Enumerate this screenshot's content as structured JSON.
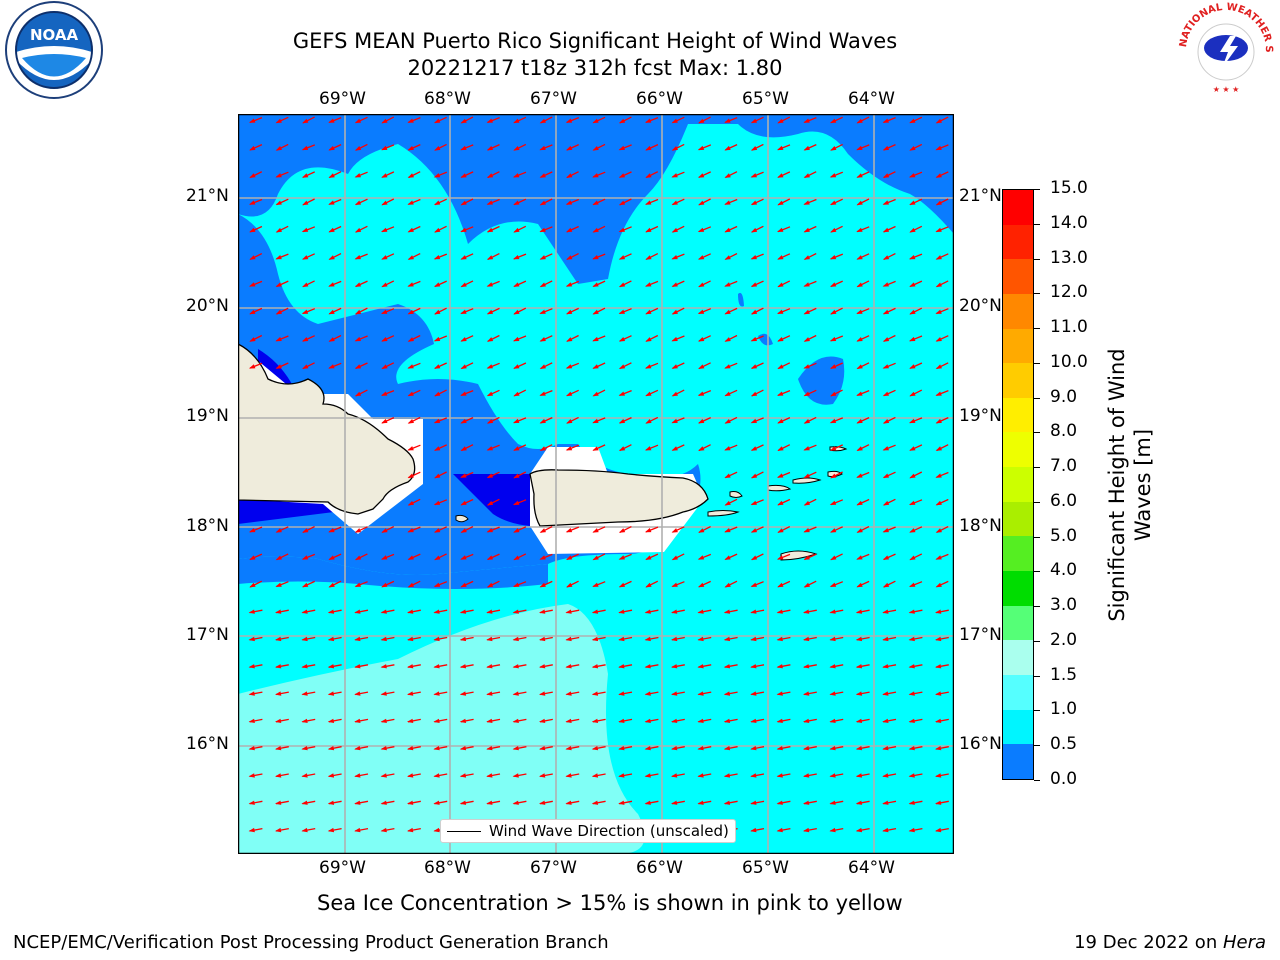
{
  "title": {
    "line1": "GEFS MEAN Puerto Rico Significant Height of Wind Waves",
    "line2": "20221217 t18z 312h fcst   Max: 1.80"
  },
  "map": {
    "lon_labels": [
      "69°W",
      "68°W",
      "67°W",
      "66°W",
      "65°W",
      "64°W"
    ],
    "lat_labels": [
      "21°N",
      "20°N",
      "19°N",
      "18°N",
      "17°N",
      "16°N"
    ],
    "ocean_colors": {
      "cyan": "#00ffff",
      "blue": "#0a7cff",
      "dark": "#0000ee",
      "light": "#80fff6",
      "land": "#efecdc",
      "arrow": "#ff0000"
    }
  },
  "colorbar": {
    "label": "Significant Height of Wind Waves [m]",
    "ticks": [
      "15.0",
      "14.0",
      "13.0",
      "12.0",
      "11.0",
      "10.0",
      "9.0",
      "8.0",
      "7.0",
      "6.0",
      "5.0",
      "4.0",
      "3.0",
      "2.0",
      "1.5",
      "1.0",
      "0.5",
      "0.0"
    ],
    "colors": [
      "#ff0000",
      "#ff2200",
      "#ff5500",
      "#ff8800",
      "#ffaa00",
      "#ffcc00",
      "#ffee00",
      "#eeff00",
      "#ccff00",
      "#aaee00",
      "#55ee22",
      "#00dd00",
      "#55ff77",
      "#aaffee",
      "#55ffff",
      "#00f5ff",
      "#0a7cff",
      "#0000ee"
    ]
  },
  "legend": {
    "label": "Wind Wave Direction (unscaled)"
  },
  "note": "Sea Ice Concentration > 15% is shown in pink to yellow",
  "footer": {
    "left": "NCEP/EMC/Verification Post Processing Product Generation Branch",
    "date": "19 Dec 2022 on ",
    "machine": "Hera"
  },
  "logos": {
    "noaa_text": "NOAA",
    "nws_text": "NATIONAL WEATHER SERVICE"
  }
}
